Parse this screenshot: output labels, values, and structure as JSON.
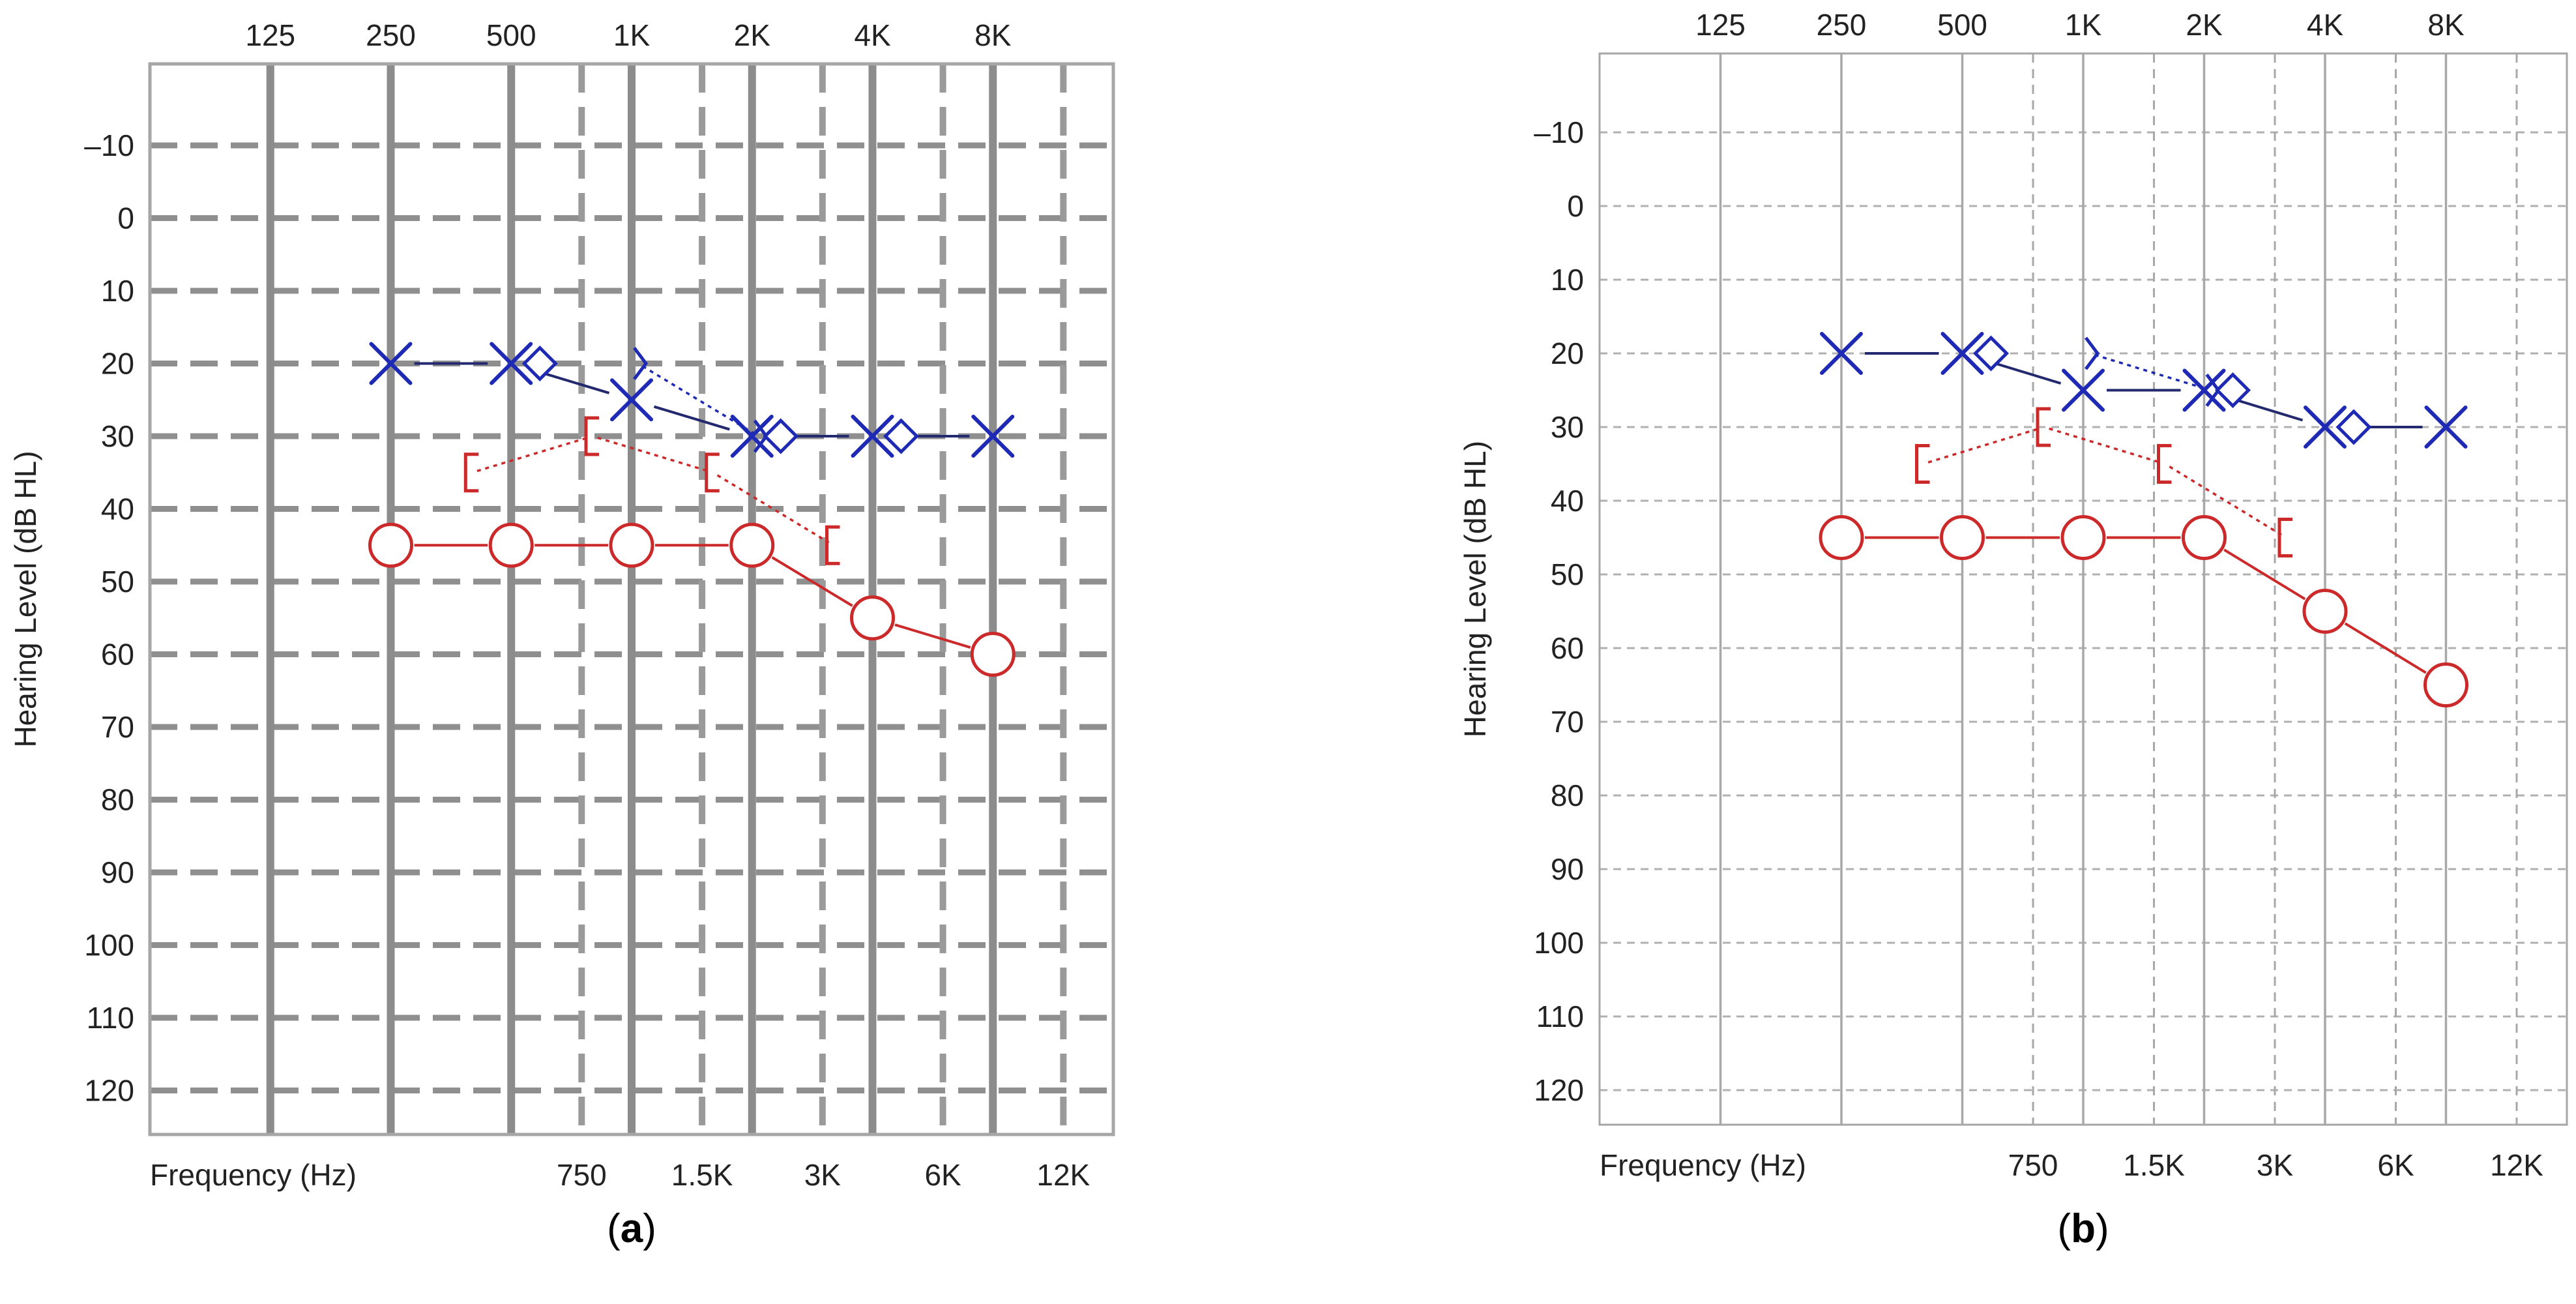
{
  "colors": {
    "right_ear": "#cc2a2a",
    "left_ear": "#1f2ab4",
    "left_ear_line": "#22296e",
    "frame": "#a6a6a6",
    "axis_text": "#222222"
  },
  "chart_data": [
    {
      "type": "line",
      "panel_label": "(a)",
      "panel_label_letter": "a",
      "top_freq_labels": [
        "125",
        "250",
        "500",
        "1K",
        "2K",
        "4K",
        "8K"
      ],
      "bottom_freq_labels": [
        "750",
        "1.5K",
        "3K",
        "6K",
        "12K"
      ],
      "xlabel": "Frequency (Hz)",
      "ylabel": "Hearing Level (dB HL)",
      "y_tick_labels": [
        "–10",
        "0",
        "10",
        "20",
        "30",
        "40",
        "50",
        "60",
        "70",
        "80",
        "90",
        "100",
        "110",
        "120"
      ],
      "ylim": [
        -20,
        125
      ],
      "y_inverted": true,
      "grid": true,
      "series": [
        {
          "role": "right-air",
          "symbol": "circle",
          "line": "solid",
          "color": "#cc2a2a",
          "x": [
            250,
            500,
            1000,
            2000,
            4000,
            8000
          ],
          "y": [
            45,
            45,
            45,
            45,
            55,
            60
          ]
        },
        {
          "role": "right-bone",
          "symbol": "bracket-left",
          "line": "dotted",
          "color": "#cc2a2a",
          "x": [
            500,
            1000,
            2000,
            4000
          ],
          "y": [
            35,
            30,
            35,
            45
          ]
        },
        {
          "role": "left-air",
          "symbol": "x",
          "line": "solid",
          "color": "#1f2ab4",
          "x": [
            250,
            500,
            1000,
            2000,
            4000,
            8000
          ],
          "y": [
            20,
            20,
            25,
            30,
            30,
            30
          ]
        },
        {
          "role": "left-bone",
          "symbol": "bracket-right",
          "line": "dotted",
          "color": "#1f2ab4",
          "x": [
            1000,
            2000
          ],
          "y": [
            20,
            30
          ]
        }
      ]
    },
    {
      "type": "line",
      "panel_label": "(b)",
      "panel_label_letter": "b",
      "top_freq_labels": [
        "125",
        "250",
        "500",
        "1K",
        "2K",
        "4K",
        "8K"
      ],
      "bottom_freq_labels": [
        "750",
        "1.5K",
        "3K",
        "6K",
        "12K"
      ],
      "xlabel": "Frequency (Hz)",
      "ylabel": "Hearing Level (dB HL)",
      "y_tick_labels": [
        "–10",
        "0",
        "10",
        "20",
        "30",
        "40",
        "50",
        "60",
        "70",
        "80",
        "90",
        "100",
        "110",
        "120"
      ],
      "ylim": [
        -20,
        125
      ],
      "y_inverted": true,
      "grid": true,
      "series": [
        {
          "role": "right-air",
          "symbol": "circle",
          "line": "solid",
          "color": "#cc2a2a",
          "x": [
            250,
            500,
            1000,
            2000,
            4000,
            8000
          ],
          "y": [
            45,
            45,
            45,
            45,
            55,
            65
          ]
        },
        {
          "role": "right-bone",
          "symbol": "bracket-left",
          "line": "dotted",
          "color": "#cc2a2a",
          "x": [
            500,
            1000,
            2000,
            4000
          ],
          "y": [
            35,
            30,
            35,
            45
          ]
        },
        {
          "role": "left-air",
          "symbol": "x",
          "line": "solid",
          "color": "#1f2ab4",
          "x": [
            250,
            500,
            1000,
            2000,
            4000,
            8000
          ],
          "y": [
            20,
            20,
            25,
            25,
            30,
            30
          ]
        },
        {
          "role": "left-bone",
          "symbol": "bracket-right",
          "line": "dotted",
          "color": "#1f2ab4",
          "x": [
            1000,
            2000
          ],
          "y": [
            20,
            25
          ]
        }
      ]
    }
  ]
}
